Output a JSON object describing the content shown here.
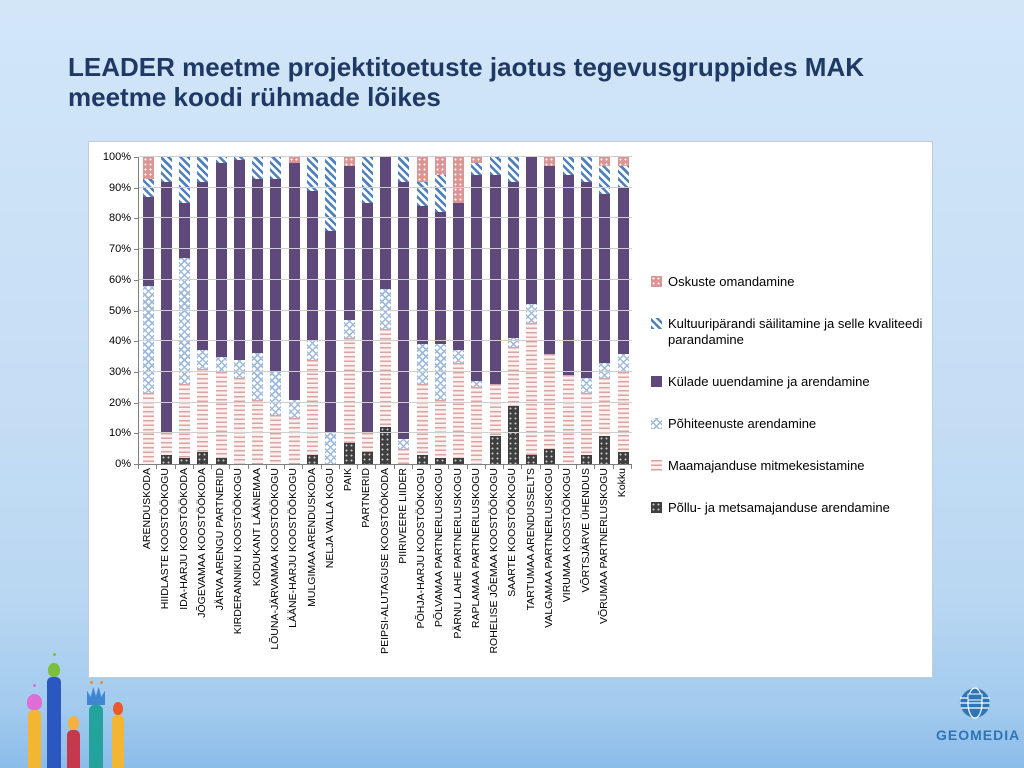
{
  "slide": {
    "title_lines": [
      "LEADER meetme projektitoetuste jaotus tegevusgruppides MAK",
      "meetme koodi rühmade lõikes"
    ],
    "title_color": "#1f3864",
    "background_top": "#d2e6f8",
    "background_bottom": "#8cbce9"
  },
  "logo": {
    "text": "GEOMEDIA",
    "color": "#2e75b6",
    "icon": "globe-icon"
  },
  "decorations": {
    "bottom_left": [
      "candle-icon-yellow-pink",
      "candle-icon-blue-green",
      "candle-icon-red-yellow",
      "candle-icon-teal-crown",
      "candle-icon-yellow-orange"
    ]
  },
  "chart_data": {
    "type": "bar",
    "stacked": true,
    "percent_stacked": true,
    "grid": true,
    "legend_position": "right",
    "ylim": [
      0,
      100
    ],
    "y_ticks": [
      "0%",
      "10%",
      "20%",
      "30%",
      "40%",
      "50%",
      "60%",
      "70%",
      "80%",
      "90%",
      "100%"
    ],
    "categories": [
      "ARENDUSKODA",
      "HIIDLASTE KOOSTÖÖKOGU",
      "IDA-HARJU KOOSTÖÖKODA",
      "JÕGEVAMAA KOOSTÖÖKODA",
      "JÄRVA ARENGU PARTNERID",
      "KIRDERANNIKU KOOSTÖÖKOGU",
      "KODUKANT LÄÄNEMAA",
      "LÕUNA-JÄRVAMAA KOOSTÖÖKOGU",
      "LÄÄNE-HARJU KOOSTÖÖKOGU",
      "MULGIMAA ARENDUSKODA",
      "NELJA VALLA KOGU",
      "PAIK",
      "PARTNERID",
      "PEIPSI-ALUTAGUSE KOOSTÖÖKODA",
      "PIIRIVEERE LIIDER",
      "PÕHJA-HARJU KOOSTÖÖKOGU",
      "PÕLVAMAA PARTNERLUSKOGU",
      "PÄRNU LAHE PARTNERLUSKOGU",
      "RAPLAMAA PARTNERLUSKOGU",
      "ROHELISE JÕEMAA KOOSTÖÖKOGU",
      "SAARTE KOOSTÖÖKOGU",
      "TARTUMAA ARENDUSSELTS",
      "VALGAMAA PARTNERLUSKOGU",
      "VIRUMAA KOOSTÖÖKOGU",
      "VÕRTSJÄRVE ÜHENDUS",
      "VÕRUMAA PARTNERLUSKOGU",
      "Kokku"
    ],
    "series": [
      {
        "name": "Põllu- ja metsamajanduse arendamine",
        "pattern": "dark-dots",
        "color": "#3f3f3f",
        "values": [
          0,
          3,
          2,
          4,
          2,
          0,
          0,
          0,
          0,
          3,
          0,
          7,
          4,
          12,
          0,
          3,
          2,
          2,
          0,
          9,
          19,
          3,
          5,
          0,
          3,
          9,
          4
        ]
      },
      {
        "name": "Maamajanduse mitmekesistamine",
        "pattern": "pink-hlines",
        "color": "#e5b8b7",
        "values": [
          23,
          7,
          24,
          27,
          28,
          28,
          21,
          16,
          15,
          31,
          0,
          34,
          6,
          32,
          5,
          23,
          19,
          31,
          25,
          17,
          19,
          43,
          31,
          29,
          20,
          19,
          26
        ]
      },
      {
        "name": "Põhiteenuste arendamine",
        "pattern": "lightblue-checker",
        "color": "#95b3d7",
        "values": [
          35,
          0,
          41,
          6,
          5,
          6,
          15,
          14,
          6,
          6,
          10,
          6,
          0,
          13,
          3,
          13,
          18,
          4,
          2,
          0,
          3,
          6,
          0,
          0,
          5,
          5,
          6
        ]
      },
      {
        "name": "Külade uuendamine ja arendamine",
        "pattern": "purple-solid",
        "color": "#5f497a",
        "values": [
          29,
          82,
          18,
          55,
          63,
          65,
          57,
          63,
          77,
          49,
          66,
          50,
          75,
          43,
          84,
          45,
          43,
          48,
          67,
          68,
          51,
          48,
          61,
          65,
          64,
          55,
          54
        ]
      },
      {
        "name": "Kultuuripärandi säilitamine ja selle kvaliteedi parandamine",
        "pattern": "blue-diag",
        "color": "#4f81bd",
        "values": [
          6,
          8,
          15,
          8,
          2,
          1,
          7,
          7,
          0,
          11,
          24,
          0,
          15,
          0,
          8,
          8,
          12,
          0,
          4,
          6,
          8,
          0,
          0,
          6,
          8,
          9,
          7
        ]
      },
      {
        "name": "Oskuste omandamine",
        "pattern": "salmon-dots",
        "color": "#d99694",
        "values": [
          7,
          0,
          0,
          0,
          0,
          0,
          0,
          0,
          2,
          0,
          0,
          3,
          0,
          0,
          0,
          8,
          6,
          15,
          2,
          0,
          0,
          0,
          3,
          0,
          0,
          3,
          3
        ]
      }
    ]
  }
}
